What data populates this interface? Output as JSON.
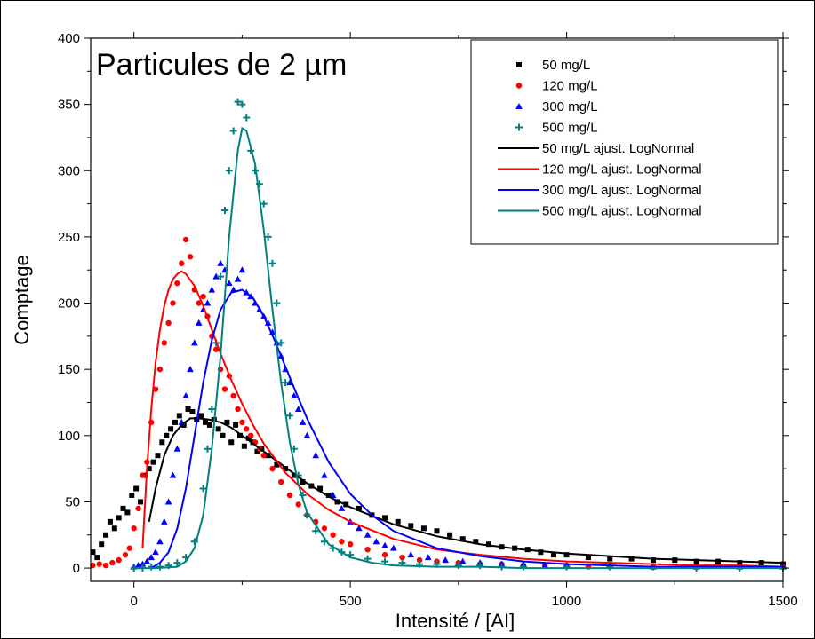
{
  "chart_data": {
    "type": "scatter",
    "title": "Particules de 2 µm",
    "xlabel": "Intensité / [AI]",
    "ylabel": "Comptage",
    "xlim": [
      -100,
      1500
    ],
    "ylim": [
      -10,
      400
    ],
    "xticks": [
      0,
      500,
      1000,
      1500
    ],
    "yticks": [
      0,
      50,
      100,
      150,
      200,
      250,
      300,
      350,
      400
    ],
    "grid": false,
    "legend_position": "top-right",
    "series": [
      {
        "name": "50 mg/L",
        "kind": "scatter",
        "marker": "square",
        "color": "#000000",
        "x": [
          -95,
          -85,
          -75,
          -65,
          -55,
          -45,
          -35,
          -25,
          -15,
          -5,
          5,
          15,
          25,
          35,
          45,
          55,
          65,
          75,
          85,
          95,
          105,
          115,
          125,
          135,
          145,
          155,
          165,
          175,
          185,
          195,
          205,
          215,
          225,
          235,
          245,
          255,
          265,
          275,
          285,
          295,
          310,
          330,
          350,
          370,
          390,
          410,
          430,
          450,
          470,
          490,
          520,
          550,
          580,
          610,
          640,
          670,
          700,
          730,
          760,
          790,
          820,
          850,
          880,
          910,
          940,
          970,
          1000,
          1050,
          1100,
          1150,
          1200,
          1250,
          1300,
          1350,
          1400,
          1450,
          1500
        ],
        "y": [
          12,
          8,
          18,
          25,
          35,
          30,
          38,
          45,
          42,
          55,
          60,
          50,
          70,
          75,
          80,
          85,
          95,
          100,
          105,
          110,
          115,
          108,
          120,
          118,
          112,
          115,
          110,
          108,
          112,
          105,
          100,
          110,
          95,
          108,
          100,
          92,
          98,
          95,
          88,
          90,
          85,
          78,
          75,
          70,
          65,
          62,
          60,
          55,
          50,
          48,
          45,
          40,
          38,
          35,
          32,
          30,
          28,
          25,
          22,
          20,
          18,
          16,
          15,
          14,
          12,
          10,
          10,
          8,
          7,
          7,
          6,
          6,
          5,
          5,
          4,
          4,
          3
        ]
      },
      {
        "name": "120 mg/L",
        "kind": "scatter",
        "marker": "circle",
        "color": "#ff0000",
        "x": [
          -95,
          -80,
          -65,
          -50,
          -35,
          -20,
          -10,
          0,
          10,
          20,
          30,
          40,
          50,
          60,
          70,
          80,
          90,
          100,
          110,
          120,
          130,
          140,
          150,
          160,
          170,
          180,
          190,
          200,
          210,
          220,
          230,
          240,
          250,
          260,
          270,
          280,
          290,
          300,
          320,
          340,
          360,
          380,
          400,
          420,
          440,
          460,
          480,
          500,
          540,
          580,
          620,
          660,
          700,
          750,
          800,
          850,
          900,
          950,
          1000,
          1050,
          1100,
          1200,
          1300,
          1400,
          1500
        ],
        "y": [
          2,
          3,
          2,
          4,
          6,
          10,
          15,
          30,
          45,
          70,
          80,
          110,
          135,
          150,
          170,
          185,
          200,
          215,
          230,
          248,
          235,
          210,
          200,
          205,
          190,
          175,
          165,
          150,
          135,
          145,
          130,
          120,
          110,
          105,
          100,
          95,
          90,
          85,
          75,
          65,
          55,
          48,
          40,
          35,
          30,
          25,
          20,
          18,
          14,
          10,
          8,
          6,
          5,
          4,
          3,
          3,
          2,
          2,
          2,
          1,
          1,
          1,
          1,
          1,
          1
        ]
      },
      {
        "name": "300 mg/L",
        "kind": "scatter",
        "marker": "triangle",
        "color": "#0000ff",
        "x": [
          0,
          10,
          20,
          30,
          40,
          50,
          60,
          70,
          80,
          90,
          100,
          110,
          120,
          130,
          140,
          150,
          160,
          170,
          180,
          190,
          200,
          210,
          220,
          230,
          240,
          250,
          260,
          270,
          280,
          290,
          300,
          310,
          320,
          330,
          340,
          350,
          360,
          370,
          380,
          390,
          400,
          420,
          440,
          460,
          480,
          500,
          520,
          540,
          560,
          580,
          600,
          640,
          680,
          720,
          760,
          800,
          850,
          900,
          950,
          1000,
          1100,
          1200,
          1300,
          1400,
          1500
        ],
        "y": [
          1,
          2,
          3,
          5,
          8,
          12,
          20,
          35,
          50,
          70,
          90,
          110,
          130,
          150,
          170,
          185,
          195,
          200,
          210,
          220,
          230,
          225,
          215,
          210,
          218,
          225,
          208,
          205,
          200,
          195,
          190,
          185,
          178,
          170,
          160,
          150,
          140,
          130,
          120,
          110,
          100,
          85,
          70,
          55,
          45,
          35,
          30,
          25,
          20,
          17,
          15,
          10,
          8,
          6,
          5,
          4,
          3,
          3,
          2,
          2,
          2,
          1,
          1,
          1,
          1
        ]
      },
      {
        "name": "500 mg/L",
        "kind": "scatter",
        "marker": "plus",
        "color": "#008080",
        "x": [
          0,
          20,
          40,
          60,
          80,
          100,
          120,
          140,
          160,
          170,
          180,
          190,
          200,
          210,
          220,
          230,
          240,
          250,
          260,
          270,
          280,
          290,
          300,
          310,
          320,
          330,
          340,
          350,
          360,
          370,
          380,
          390,
          400,
          420,
          440,
          460,
          480,
          500,
          540,
          580,
          620,
          660,
          700,
          750,
          800,
          850,
          900,
          1000,
          1100,
          1200,
          1300,
          1400,
          1500
        ],
        "y": [
          0,
          0,
          1,
          1,
          2,
          4,
          8,
          20,
          60,
          90,
          120,
          170,
          220,
          270,
          300,
          330,
          352,
          350,
          340,
          315,
          300,
          290,
          275,
          250,
          230,
          200,
          170,
          140,
          115,
          90,
          70,
          55,
          40,
          28,
          20,
          15,
          12,
          10,
          7,
          5,
          4,
          3,
          3,
          2,
          2,
          1,
          1,
          1,
          1,
          1,
          0,
          0,
          0
        ]
      },
      {
        "name": "50 mg/L ajust. LogNormal",
        "kind": "line",
        "color": "#000000",
        "x": [
          35,
          50,
          70,
          90,
          110,
          130,
          150,
          175,
          200,
          225,
          250,
          300,
          350,
          400,
          450,
          500,
          600,
          700,
          800,
          900,
          1000,
          1100,
          1200,
          1300,
          1400,
          1500
        ],
        "y": [
          35,
          60,
          85,
          100,
          108,
          113,
          113,
          112,
          110,
          106,
          100,
          88,
          76,
          64,
          54,
          46,
          33,
          24,
          18,
          14,
          11,
          9,
          7,
          6,
          5,
          4
        ]
      },
      {
        "name": "120 mg/L ajust. LogNormal",
        "kind": "line",
        "color": "#ff0000",
        "x": [
          20,
          30,
          40,
          50,
          60,
          70,
          80,
          90,
          100,
          110,
          120,
          140,
          160,
          180,
          200,
          225,
          250,
          275,
          300,
          350,
          400,
          450,
          500,
          600,
          700,
          800,
          900,
          1000,
          1100,
          1200,
          1300,
          1400,
          1500
        ],
        "y": [
          15,
          75,
          120,
          155,
          180,
          198,
          210,
          218,
          222,
          224,
          222,
          213,
          198,
          180,
          162,
          142,
          124,
          108,
          94,
          72,
          56,
          44,
          35,
          22,
          14,
          10,
          7,
          5,
          4,
          3,
          2,
          2,
          1
        ]
      },
      {
        "name": "300 mg/L ajust. LogNormal",
        "kind": "line",
        "color": "#0000ff",
        "x": [
          40,
          60,
          80,
          100,
          120,
          140,
          160,
          180,
          200,
          225,
          250,
          275,
          300,
          325,
          350,
          375,
          400,
          450,
          500,
          550,
          600,
          700,
          800,
          900,
          1000,
          1100,
          1200,
          1300,
          1400,
          1500
        ],
        "y": [
          0,
          4,
          12,
          30,
          60,
          100,
          140,
          172,
          195,
          208,
          210,
          204,
          190,
          172,
          152,
          132,
          113,
          80,
          56,
          40,
          28,
          15,
          9,
          5,
          3,
          2,
          1,
          1,
          1,
          1
        ]
      },
      {
        "name": "500 mg/L ajust. LogNormal",
        "kind": "line",
        "color": "#008080",
        "x": [
          0,
          50,
          100,
          120,
          140,
          160,
          180,
          200,
          220,
          240,
          250,
          260,
          280,
          300,
          320,
          340,
          360,
          380,
          400,
          450,
          500,
          550,
          600,
          700,
          800,
          900,
          1000,
          1100,
          1200,
          1300,
          1400,
          1500
        ],
        "y": [
          0,
          0,
          1,
          5,
          15,
          40,
          90,
          160,
          250,
          315,
          332,
          330,
          305,
          255,
          195,
          140,
          95,
          63,
          42,
          18,
          8,
          4,
          2,
          1,
          1,
          0,
          0,
          0,
          0,
          0,
          0,
          0
        ]
      }
    ]
  }
}
